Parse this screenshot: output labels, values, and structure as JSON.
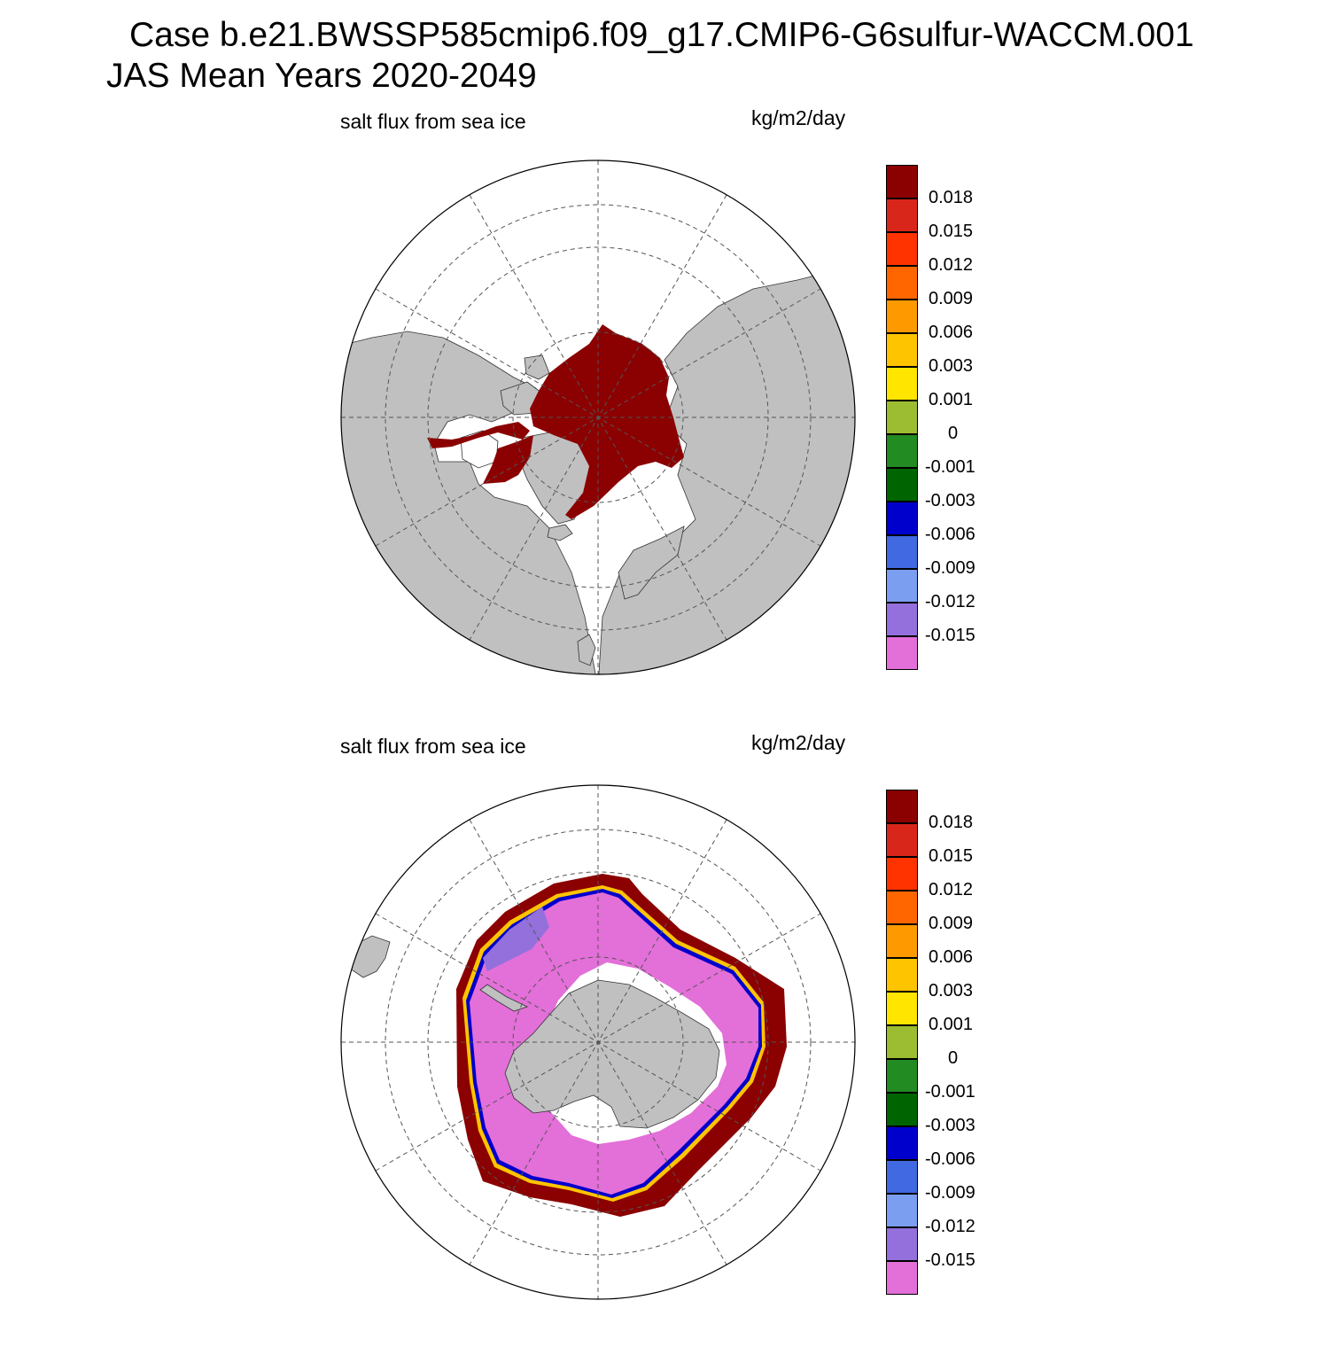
{
  "title": {
    "line1": "Case b.e21.BWSSP585cmip6.f09_g17.CMIP6-G6sulfur-WACCM.001",
    "line2": "JAS Mean   Years 2020-2049"
  },
  "panels": [
    {
      "hemisphere": "north",
      "left_label": "salt flux from sea ice",
      "right_label": "kg/m2/day"
    },
    {
      "hemisphere": "south",
      "left_label": "salt flux from sea ice",
      "right_label": "kg/m2/day"
    }
  ],
  "colorbar": {
    "colors": [
      "#8b0000",
      "#d9261a",
      "#ff3300",
      "#ff6600",
      "#ff9900",
      "#ffc400",
      "#ffe500",
      "#9cbd31",
      "#228b22",
      "#006400",
      "#0000cd",
      "#4169e1",
      "#7b9ef0",
      "#9370db",
      "#e36fd8"
    ],
    "labels": [
      "0.018",
      "0.015",
      "0.012",
      "0.009",
      "0.006",
      "0.003",
      "0.001",
      "0",
      "-0.001",
      "-0.003",
      "-0.006",
      "-0.009",
      "-0.012",
      "-0.015"
    ]
  },
  "style": {
    "land": "#c0c0c0",
    "ocean": "#ffffff",
    "grid": "#555555"
  }
}
